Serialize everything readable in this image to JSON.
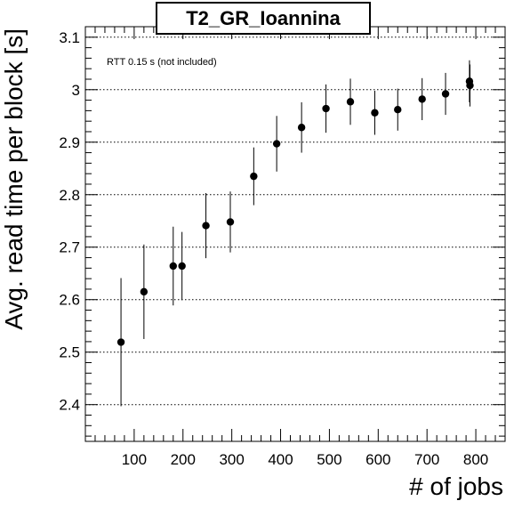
{
  "chart_data": {
    "type": "scatter",
    "title": "T2_GR_Ioannina",
    "annotation": "RTT 0.15 s (not included)",
    "xlabel": "# of jobs",
    "ylabel": "Avg. read time per block [s]",
    "xlim": [
      0,
      860
    ],
    "ylim": [
      2.33,
      3.12
    ],
    "xticks": [
      100,
      200,
      300,
      400,
      500,
      600,
      700,
      800
    ],
    "yticks": [
      2.4,
      2.5,
      2.6,
      2.7,
      2.8,
      2.9,
      3.0,
      3.1
    ],
    "ytick_labels": [
      "2.4",
      "2.5",
      "2.6",
      "2.7",
      "2.8",
      "2.9",
      "3",
      "3.1"
    ],
    "grid": "horizontal dotted",
    "marker_color": "#000000",
    "points": [
      {
        "x": 73,
        "y": 2.519,
        "err": 0.122
      },
      {
        "x": 120,
        "y": 2.615,
        "err": 0.09
      },
      {
        "x": 180,
        "y": 2.664,
        "err": 0.075
      },
      {
        "x": 198,
        "y": 2.664,
        "err": 0.065
      },
      {
        "x": 247,
        "y": 2.741,
        "err": 0.062
      },
      {
        "x": 297,
        "y": 2.748,
        "err": 0.058
      },
      {
        "x": 345,
        "y": 2.835,
        "err": 0.055
      },
      {
        "x": 392,
        "y": 2.897,
        "err": 0.053
      },
      {
        "x": 443,
        "y": 2.928,
        "err": 0.048
      },
      {
        "x": 493,
        "y": 2.964,
        "err": 0.046
      },
      {
        "x": 543,
        "y": 2.977,
        "err": 0.044
      },
      {
        "x": 593,
        "y": 2.956,
        "err": 0.042
      },
      {
        "x": 640,
        "y": 2.962,
        "err": 0.04
      },
      {
        "x": 690,
        "y": 2.982,
        "err": 0.04
      },
      {
        "x": 738,
        "y": 2.992,
        "err": 0.04
      },
      {
        "x": 787,
        "y": 3.016,
        "err": 0.04
      },
      {
        "x": 788,
        "y": 3.008,
        "err": 0.04
      }
    ]
  }
}
